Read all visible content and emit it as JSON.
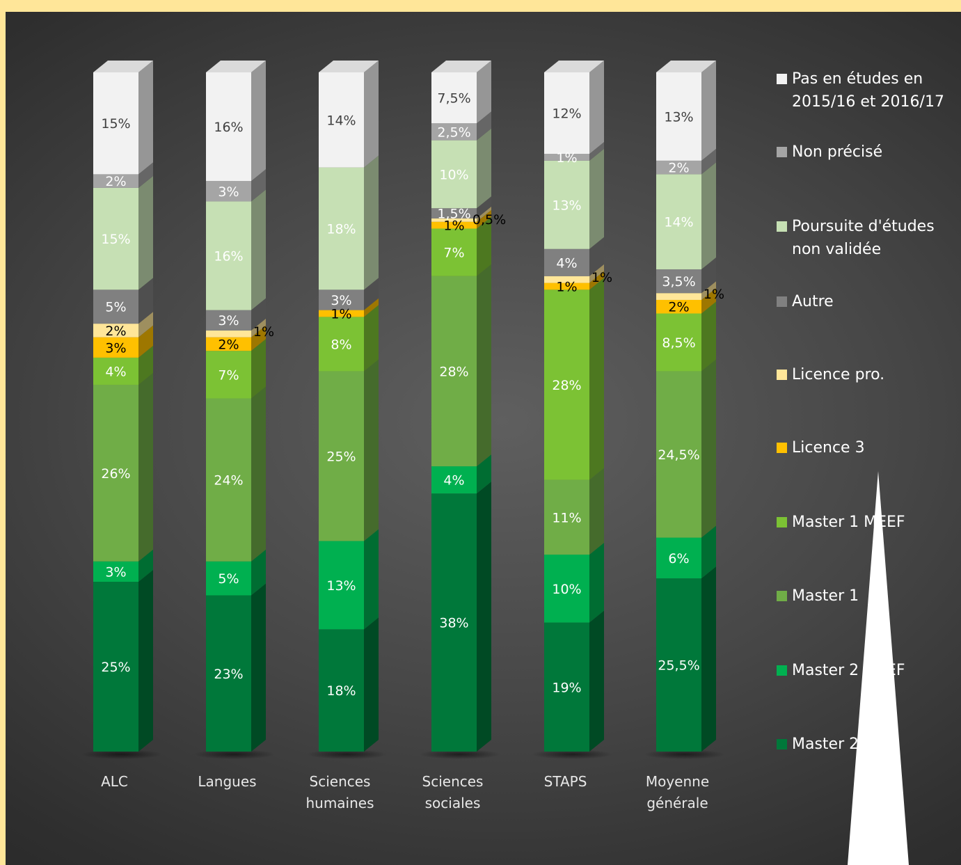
{
  "chart_data": {
    "type": "bar",
    "stacked": true,
    "style": "3d-column-100pct",
    "categories": [
      "ALC",
      "Langues",
      "Sciences humaines",
      "Sciences sociales",
      "STAPS",
      "Moyenne générale"
    ],
    "category_lines": [
      [
        "ALC"
      ],
      [
        "Langues"
      ],
      [
        "Sciences",
        "humaines"
      ],
      [
        "Sciences",
        "sociales"
      ],
      [
        "STAPS"
      ],
      [
        "Moyenne",
        "générale"
      ]
    ],
    "series": [
      {
        "name": "Master 2",
        "color": "#00783a",
        "values": [
          25,
          23,
          18,
          38,
          19,
          25.5
        ],
        "labels": [
          "25%",
          "23%",
          "18%",
          "38%",
          "19%",
          "25,5%"
        ]
      },
      {
        "name": "Master 2 MEEF",
        "color": "#00b050",
        "values": [
          3,
          5,
          13,
          4,
          10,
          6
        ],
        "labels": [
          "3%",
          "5%",
          "13%",
          "4%",
          "10%",
          "6%"
        ]
      },
      {
        "name": "Master 1",
        "color": "#70ad47",
        "values": [
          26,
          24,
          25,
          28,
          11,
          24.5
        ],
        "labels": [
          "26%",
          "24%",
          "25%",
          "28%",
          "11%",
          "24,5%"
        ]
      },
      {
        "name": "Master 1 MEEF",
        "color": "#7cc234",
        "values": [
          4,
          7,
          8,
          7,
          28,
          8.5
        ],
        "labels": [
          "4%",
          "7%",
          "8%",
          "7%",
          "28%",
          "8,5%"
        ]
      },
      {
        "name": "Licence 3",
        "color": "#ffc000",
        "values": [
          3,
          2,
          1,
          1,
          1,
          2
        ],
        "labels": [
          "3%",
          "2%",
          "1%",
          "1%",
          "1%",
          "2%"
        ]
      },
      {
        "name": "Licence pro.",
        "color": "#ffe699",
        "values": [
          2,
          1,
          0,
          0.5,
          1,
          1
        ],
        "labels": [
          "2%",
          "1%",
          "",
          "0,5%",
          "1%",
          "1%"
        ]
      },
      {
        "name": "Autre",
        "color": "#808080",
        "values": [
          5,
          3,
          3,
          1.5,
          4,
          3.5
        ],
        "labels": [
          "5%",
          "3%",
          "3%",
          "1,5%",
          "4%",
          "3,5%"
        ]
      },
      {
        "name": "Poursuite d'études non validée",
        "color": "#c6e0b4",
        "values": [
          15,
          16,
          18,
          10,
          13,
          14
        ],
        "labels": [
          "15%",
          "16%",
          "18%",
          "10%",
          "13%",
          "14%"
        ]
      },
      {
        "name": "Non précisé",
        "color": "#a5a5a5",
        "values": [
          2,
          3,
          0,
          2.5,
          1,
          2
        ],
        "labels": [
          "2%",
          "3%",
          "",
          "2,5%",
          "1%",
          "2%"
        ]
      },
      {
        "name": "Pas en études en 2015/16 et 2016/17",
        "color": "#f2f2f2",
        "values": [
          15,
          16,
          14,
          7.5,
          12,
          13
        ],
        "labels": [
          "15%",
          "16%",
          "14%",
          "7,5%",
          "12%",
          "13%"
        ]
      }
    ],
    "legend_order": [
      9,
      8,
      7,
      6,
      5,
      4,
      3,
      2,
      1,
      0
    ],
    "legend_lines": {
      "9": [
        "Pas en études en",
        "2015/16 et 2016/17"
      ],
      "7": [
        "Poursuite d'études",
        "non validée"
      ]
    },
    "legend_position": "right",
    "ylim": [
      0,
      100
    ],
    "grid": false,
    "title": "",
    "xlabel": "",
    "ylabel": ""
  }
}
